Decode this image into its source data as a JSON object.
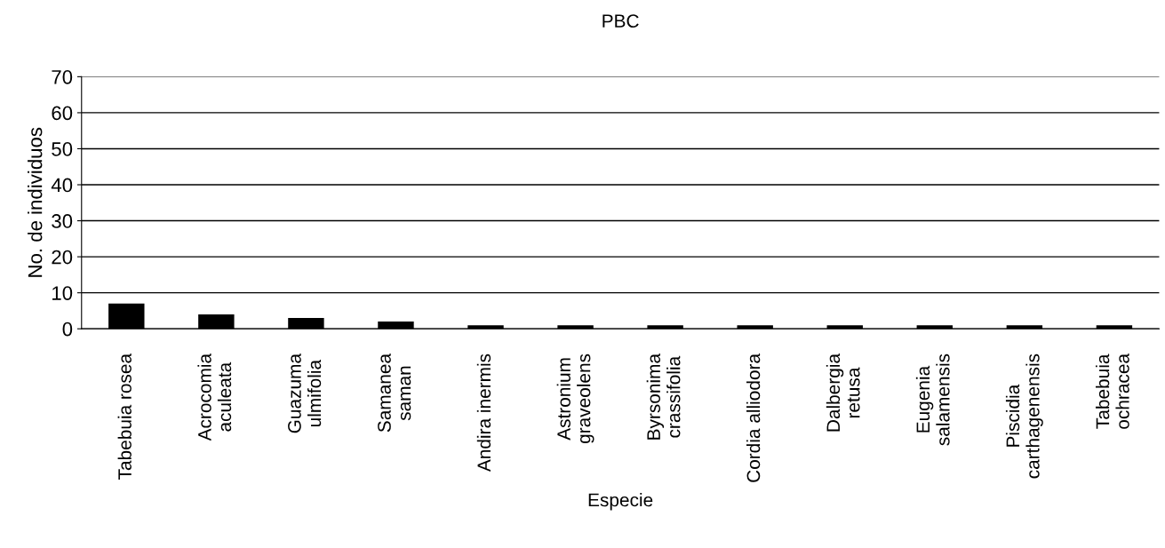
{
  "chart_data": {
    "type": "bar",
    "title": "PBC",
    "xlabel": "Especie",
    "ylabel": "No. de individuos",
    "categories": [
      "Tabebuia rosea",
      "Acrocomia\naculeata",
      "Guazuma\nulmifolia",
      "Samanea\nsaman",
      "Andira inermis",
      "Astronium\ngraveolens",
      "Byrsonima\ncrassifolia",
      "Cordia alliodora",
      "Dalbergia\nretusa",
      "Eugenia\nsalamensis",
      "Piscidia\ncarthagenensis",
      "Tabebuia\nochracea"
    ],
    "values": [
      7,
      4,
      3,
      2,
      1,
      1,
      1,
      1,
      1,
      1,
      1,
      1
    ],
    "color": "#000000",
    "ylim": [
      0,
      70
    ],
    "yticks": [
      0,
      10,
      20,
      30,
      40,
      50,
      60,
      70
    ],
    "grid": "y"
  }
}
